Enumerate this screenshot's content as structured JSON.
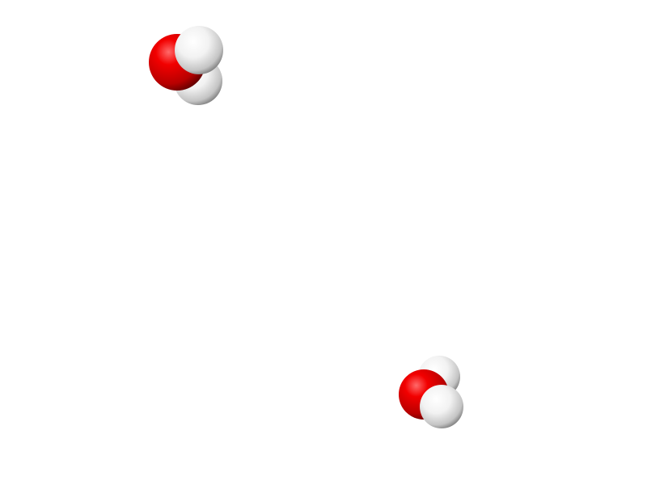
{
  "scene": {
    "background": "#ffffff",
    "molecules": [
      {
        "name": "water-molecule-1",
        "atoms": [
          {
            "element": "H",
            "color": "#ffffff"
          },
          {
            "element": "O",
            "color": "#e00000"
          },
          {
            "element": "H",
            "color": "#ffffff"
          }
        ]
      },
      {
        "name": "water-molecule-2",
        "atoms": [
          {
            "element": "H",
            "color": "#ffffff"
          },
          {
            "element": "O",
            "color": "#e00000"
          },
          {
            "element": "H",
            "color": "#ffffff"
          }
        ]
      }
    ]
  }
}
